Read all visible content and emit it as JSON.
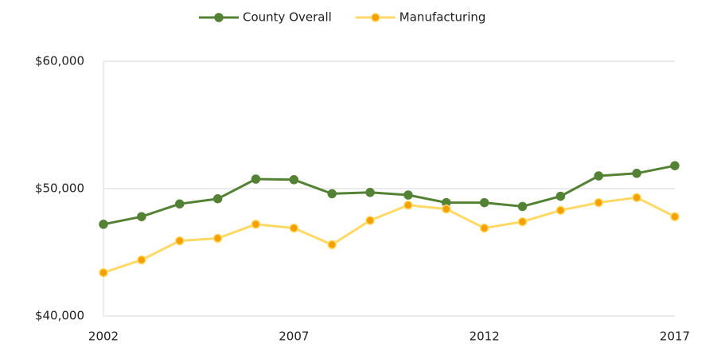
{
  "chart_data": {
    "type": "line",
    "x": [
      2002,
      2003,
      2004,
      2005,
      2006,
      2007,
      2008,
      2009,
      2010,
      2011,
      2012,
      2013,
      2014,
      2015,
      2016,
      2017
    ],
    "series": [
      {
        "name": "County Overall",
        "color": "#548235",
        "marker_color": "#548235",
        "values": [
          47200,
          47800,
          48800,
          49200,
          50750,
          50700,
          49600,
          49700,
          49500,
          48900,
          48900,
          48600,
          49400,
          51000,
          51200,
          51800
        ]
      },
      {
        "name": "Manufacturing",
        "color": "#ffd966",
        "marker_color": "#f4a000",
        "values": [
          43400,
          44400,
          45900,
          46100,
          47200,
          46900,
          45600,
          47500,
          48700,
          48400,
          46900,
          47400,
          48300,
          48900,
          49300,
          47800
        ]
      }
    ],
    "xlim": [
      2002,
      2017
    ],
    "xticks": [
      2002,
      2007,
      2012,
      2017
    ],
    "ylim": [
      40000,
      60000
    ],
    "yticks": [
      {
        "value": 40000,
        "label": "$40,000"
      },
      {
        "value": 50000,
        "label": "$50,000"
      },
      {
        "value": 60000,
        "label": "$60,000"
      }
    ],
    "grid": true,
    "legend": "top"
  }
}
